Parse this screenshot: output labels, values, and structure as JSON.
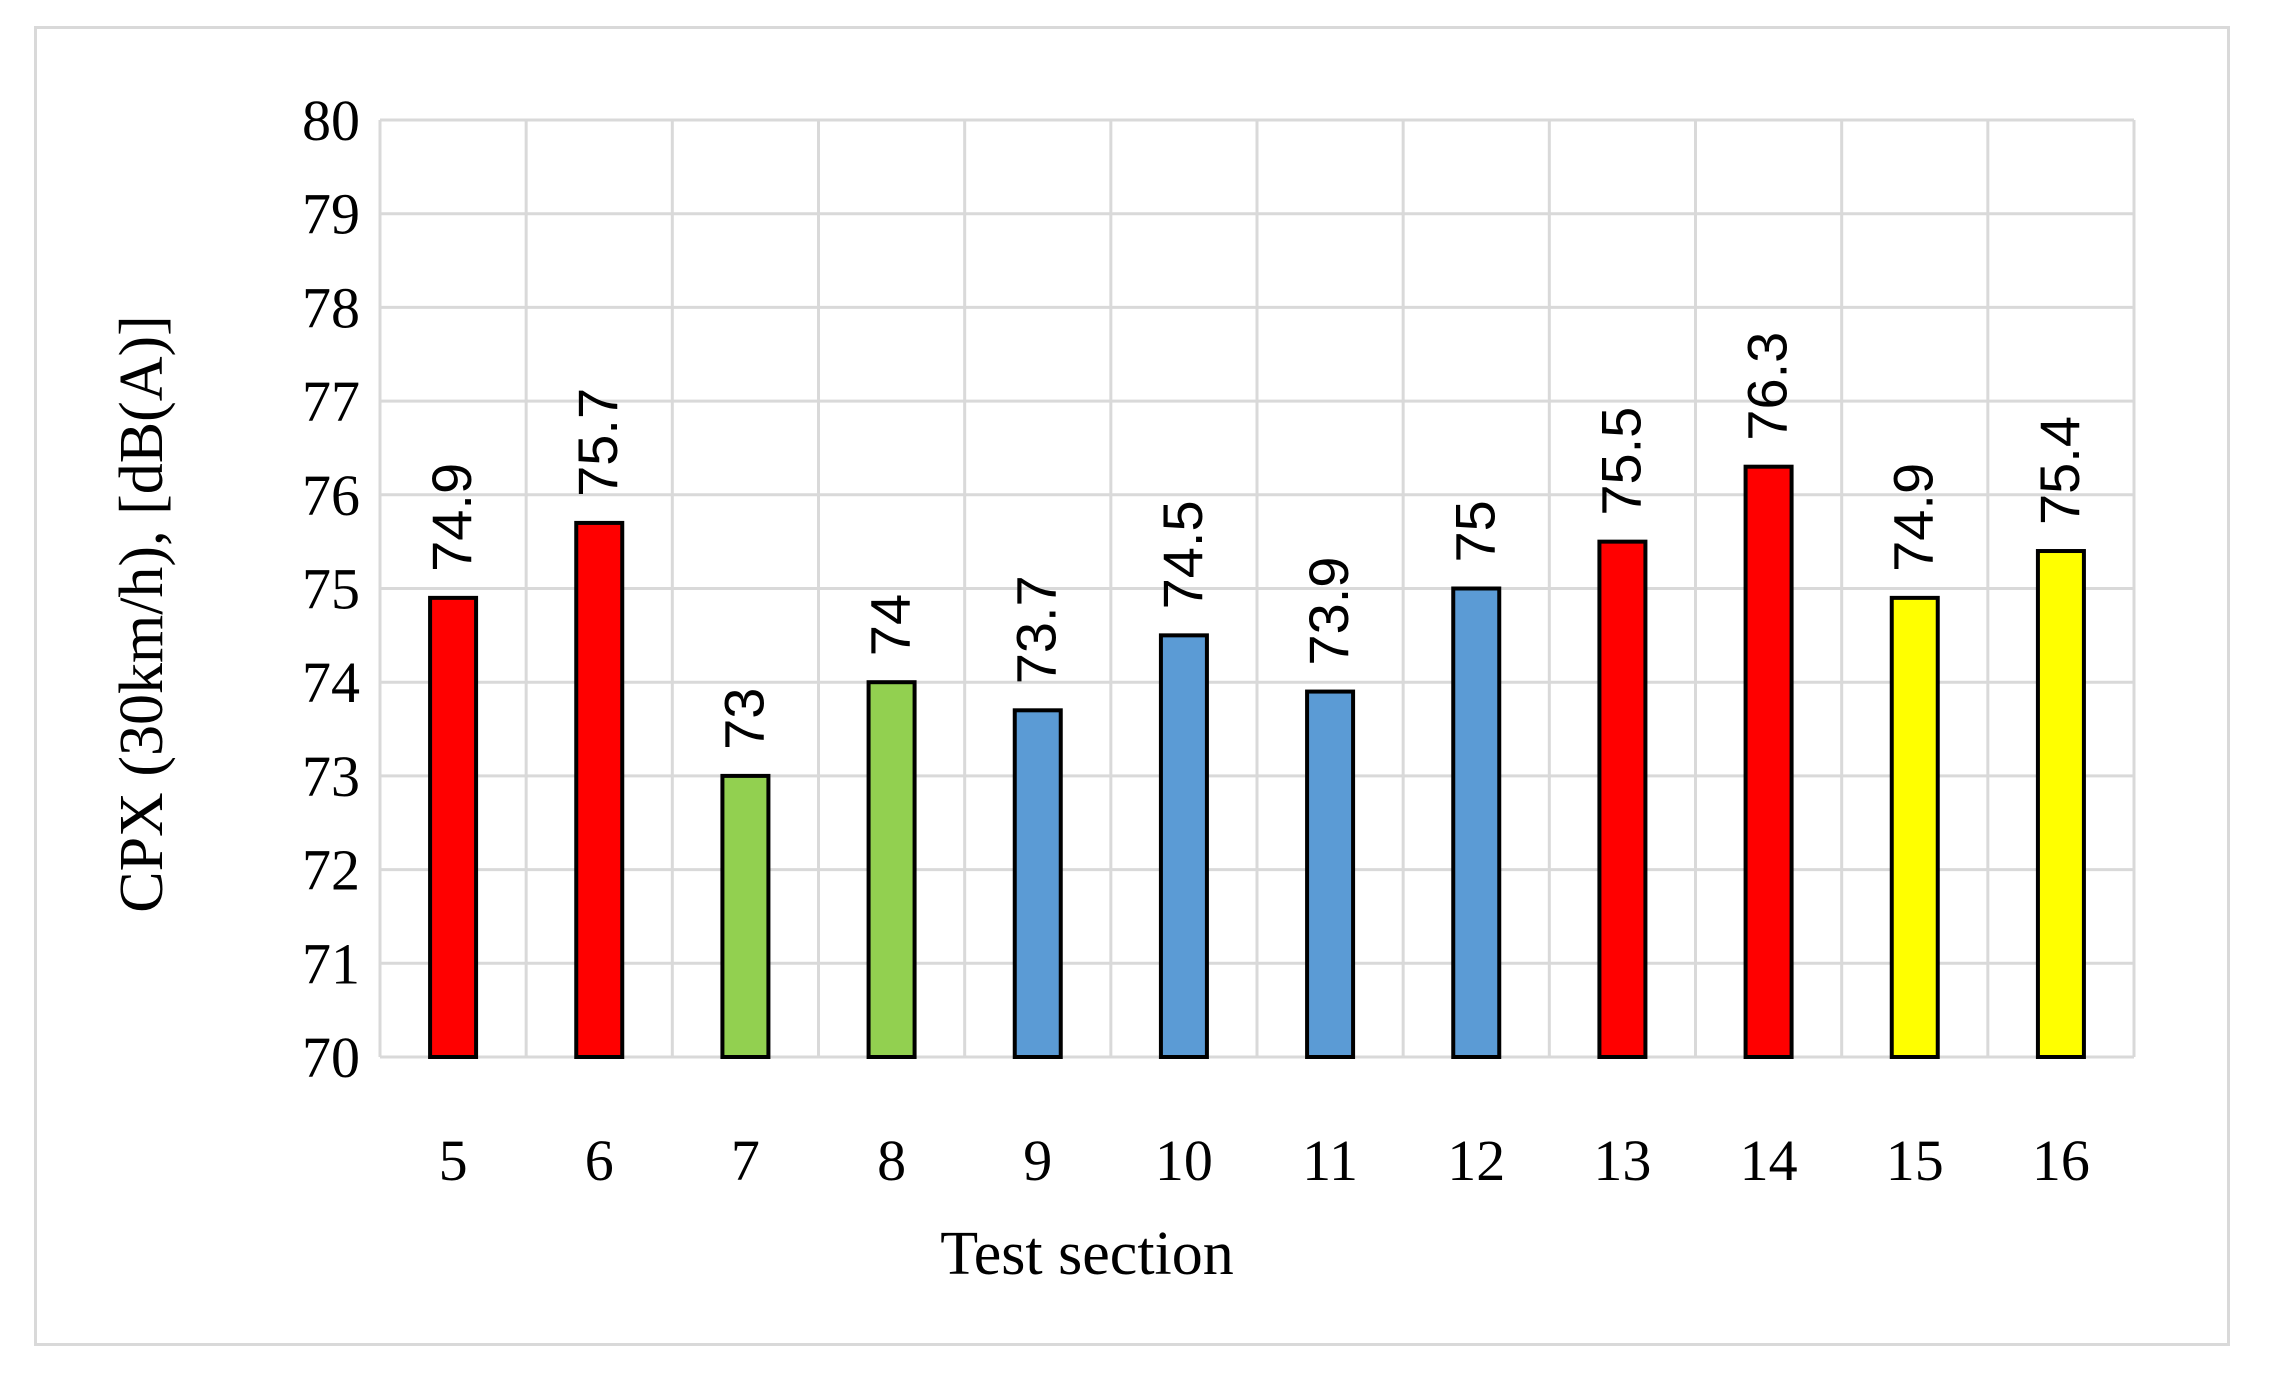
{
  "chart_data": {
    "type": "bar",
    "title": "",
    "xlabel": "Test section",
    "ylabel": "CPX (30km/h), [dB(A)]",
    "ylim": [
      70,
      80
    ],
    "yticks": [
      70,
      71,
      72,
      73,
      74,
      75,
      76,
      77,
      78,
      79,
      80
    ],
    "grid": true,
    "legend": "none",
    "categories": [
      "5",
      "6",
      "7",
      "8",
      "9",
      "10",
      "11",
      "12",
      "13",
      "14",
      "15",
      "16"
    ],
    "values": [
      74.9,
      75.7,
      73,
      74,
      73.7,
      74.5,
      73.9,
      75,
      75.5,
      76.3,
      74.9,
      75.4
    ],
    "data_labels": [
      "74.9",
      "75.7",
      "73",
      "74",
      "73.7",
      "74.5",
      "73.9",
      "75",
      "75.5",
      "76.3",
      "74.9",
      "75.4"
    ],
    "bar_colors": [
      "#ff0000",
      "#ff0000",
      "#92d050",
      "#92d050",
      "#5b9bd5",
      "#5b9bd5",
      "#5b9bd5",
      "#5b9bd5",
      "#ff0000",
      "#ff0000",
      "#ffff00",
      "#ffff00"
    ]
  },
  "colors": {
    "grid": "#d9d9d9",
    "bar_outline": "#000000",
    "frame": "#d9d9d9"
  }
}
